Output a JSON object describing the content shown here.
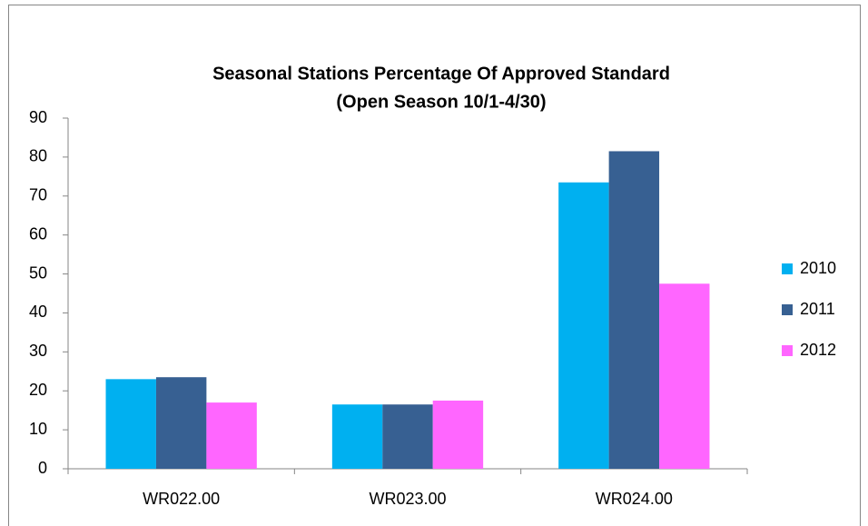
{
  "chart_data": {
    "type": "bar",
    "title": "Seasonal Stations Percentage Of Approved Standard",
    "subtitle": "(Open Season 10/1-4/30)",
    "categories": [
      "WR022.00",
      "WR023.00",
      "WR024.00"
    ],
    "series": [
      {
        "name": "2010",
        "color": "#00b0f0",
        "values": [
          23,
          16.5,
          73.5
        ]
      },
      {
        "name": "2011",
        "color": "#376092",
        "values": [
          23.5,
          16.5,
          81.5
        ]
      },
      {
        "name": "2012",
        "color": "#ff66ff",
        "values": [
          17,
          17.5,
          47.5
        ]
      }
    ],
    "ylim": [
      0,
      90
    ],
    "yticks": [
      0,
      10,
      20,
      30,
      40,
      50,
      60,
      70,
      80,
      90
    ],
    "grid": false,
    "legend": "right"
  }
}
